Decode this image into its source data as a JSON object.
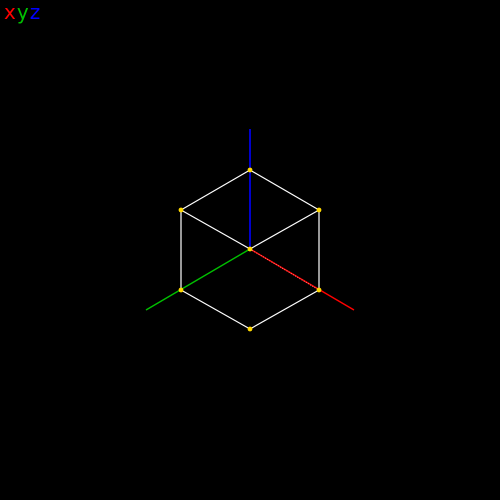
{
  "legend": {
    "x": {
      "label": "x",
      "color": "#ff0000"
    },
    "y": {
      "label": "y",
      "color": "#00c000"
    },
    "z": {
      "label": "z",
      "color": "#0000ff"
    }
  },
  "scene": {
    "background": "#000000",
    "edge_color": "#ffffff",
    "vertex_color": "#ffd800"
  }
}
